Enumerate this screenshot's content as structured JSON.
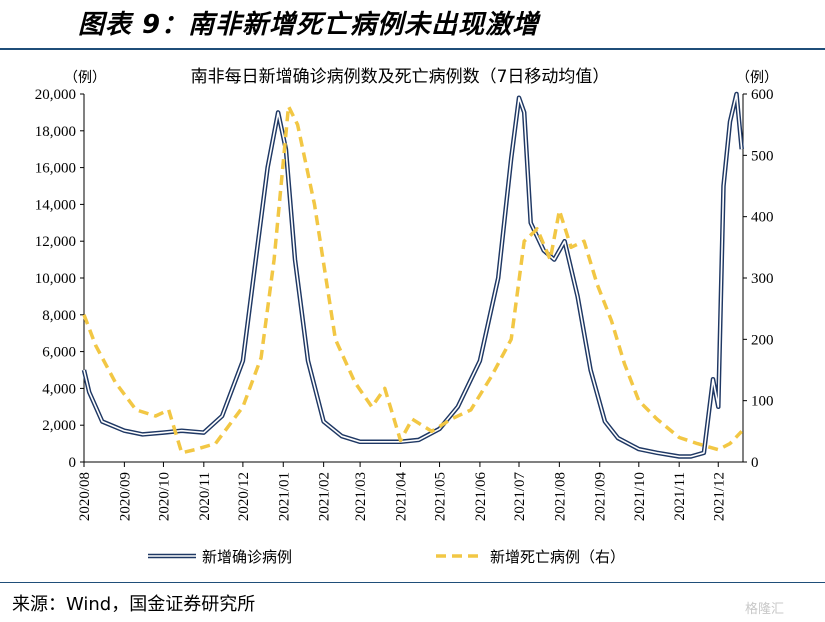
{
  "header": {
    "figure_title": "图表 9：南非新增死亡病例未出现激增"
  },
  "footer": {
    "source": "来源：Wind，国金证券研究所",
    "watermark": "格隆汇"
  },
  "chart_data": {
    "type": "line",
    "title": "南非每日新增确诊病例数及死亡病例数（7日移动均值）",
    "left_unit": "（例）",
    "right_unit": "（例）",
    "x_ticks": [
      "2020/08",
      "2020/09",
      "2020/10",
      "2020/11",
      "2020/12",
      "2021/01",
      "2021/02",
      "2021/03",
      "2021/04",
      "2021/05",
      "2021/06",
      "2021/07",
      "2021/08",
      "2021/09",
      "2021/10",
      "2021/11",
      "2021/12"
    ],
    "left_ticks": [
      "0",
      "2,000",
      "4,000",
      "6,000",
      "8,000",
      "10,000",
      "12,000",
      "14,000",
      "16,000",
      "18,000",
      "20,000"
    ],
    "right_ticks": [
      "0",
      "100",
      "200",
      "300",
      "400",
      "500",
      "600"
    ],
    "ylim_left": [
      0,
      20000
    ],
    "ylim_right": [
      0,
      600
    ],
    "legend_position": "bottom",
    "colors": {
      "cases": "#1f3864",
      "deaths": "#f2c744"
    },
    "series": [
      {
        "name": "新增确诊病例",
        "axis": "left",
        "x": [
          "2020-08-01",
          "2020-08-05",
          "2020-08-15",
          "2020-09-01",
          "2020-09-15",
          "2020-10-01",
          "2020-10-15",
          "2020-11-01",
          "2020-11-15",
          "2020-12-01",
          "2020-12-10",
          "2020-12-20",
          "2020-12-28",
          "2021-01-03",
          "2021-01-10",
          "2021-01-20",
          "2021-02-01",
          "2021-02-15",
          "2021-03-01",
          "2021-03-20",
          "2021-04-01",
          "2021-04-15",
          "2021-05-01",
          "2021-05-15",
          "2021-06-01",
          "2021-06-15",
          "2021-06-25",
          "2021-07-01",
          "2021-07-05",
          "2021-07-10",
          "2021-07-20",
          "2021-07-28",
          "2021-08-05",
          "2021-08-15",
          "2021-08-25",
          "2021-09-05",
          "2021-09-15",
          "2021-10-01",
          "2021-10-15",
          "2021-11-01",
          "2021-11-10",
          "2021-11-20",
          "2021-11-27",
          "2021-12-01",
          "2021-12-05",
          "2021-12-10",
          "2021-12-15",
          "2021-12-19"
        ],
        "values": [
          5000,
          3800,
          2200,
          1700,
          1500,
          1600,
          1700,
          1600,
          2500,
          5500,
          10500,
          16000,
          19000,
          17000,
          11000,
          5500,
          2200,
          1400,
          1100,
          1100,
          1100,
          1200,
          1800,
          3000,
          5500,
          10000,
          16500,
          19800,
          19000,
          13000,
          11500,
          11000,
          12000,
          9000,
          5000,
          2200,
          1300,
          700,
          500,
          300,
          300,
          500,
          4500,
          3000,
          15000,
          18500,
          20000,
          17000
        ]
      },
      {
        "name": "新增死亡病例（右）",
        "axis": "right",
        "x": [
          "2020-08-01",
          "2020-08-10",
          "2020-08-25",
          "2020-09-10",
          "2020-09-25",
          "2020-10-05",
          "2020-10-15",
          "2020-10-25",
          "2020-11-10",
          "2020-12-01",
          "2020-12-15",
          "2020-12-25",
          "2021-01-05",
          "2021-01-12",
          "2021-01-25",
          "2021-02-10",
          "2021-02-25",
          "2021-03-10",
          "2021-03-20",
          "2021-04-01",
          "2021-04-10",
          "2021-04-25",
          "2021-05-10",
          "2021-05-25",
          "2021-06-10",
          "2021-06-25",
          "2021-07-05",
          "2021-07-15",
          "2021-07-25",
          "2021-08-01",
          "2021-08-10",
          "2021-08-20",
          "2021-08-30",
          "2021-09-10",
          "2021-09-20",
          "2021-10-01",
          "2021-10-15",
          "2021-11-01",
          "2021-11-15",
          "2021-12-01",
          "2021-12-10",
          "2021-12-19"
        ],
        "values": [
          240,
          190,
          130,
          85,
          75,
          85,
          15,
          20,
          30,
          90,
          170,
          330,
          580,
          550,
          420,
          200,
          130,
          90,
          120,
          35,
          70,
          50,
          70,
          85,
          140,
          200,
          360,
          380,
          330,
          410,
          350,
          360,
          290,
          230,
          160,
          100,
          70,
          40,
          30,
          20,
          30,
          50
        ]
      }
    ]
  }
}
